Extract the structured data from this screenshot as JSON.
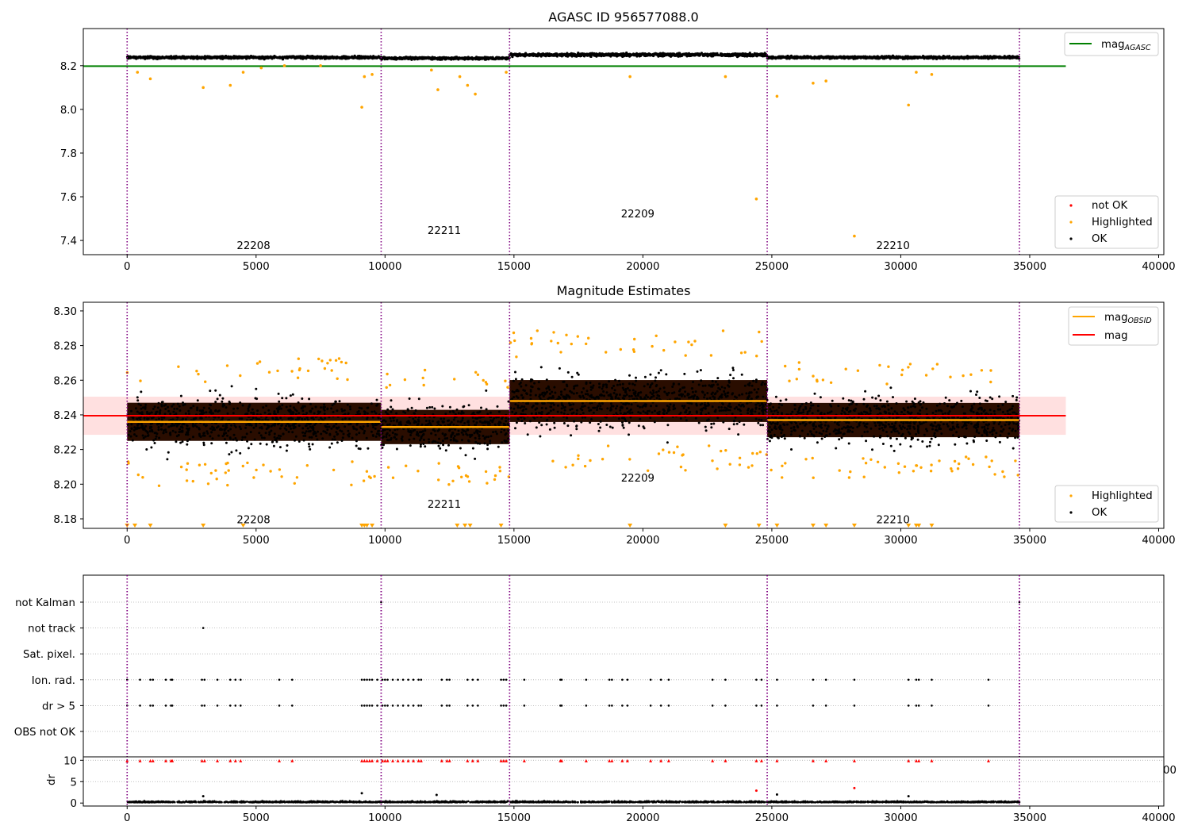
{
  "chart_data": [
    {
      "type": "scatter",
      "title": "AGASC ID 956577088.0",
      "xlim": [
        -1700,
        40200
      ],
      "ylim": [
        7.335,
        8.37
      ],
      "xticks": [
        "0",
        "5000",
        "10000",
        "15000",
        "20000",
        "25000",
        "30000",
        "35000",
        "40000"
      ],
      "yticks": [
        "7.4",
        "7.6",
        "7.8",
        "8.0",
        "8.2"
      ],
      "grid": false,
      "legends": [
        {
          "placement": "top-right",
          "entries": [
            {
              "label": "mag",
              "sub": "AGASC",
              "color": "#008000",
              "kind": "line"
            }
          ]
        },
        {
          "placement": "bottom-right",
          "entries": [
            {
              "label": "not OK",
              "color": "#ff0000",
              "kind": "dot"
            },
            {
              "label": "Highlighted",
              "color": "#ffa500",
              "kind": "dot"
            },
            {
              "label": "OK",
              "color": "#000000",
              "kind": "dot"
            }
          ]
        }
      ],
      "reference_line": {
        "name": "mag_AGASC",
        "y": 8.198,
        "x": [
          -1700,
          36400
        ],
        "color": "#008000"
      },
      "obsid_boundaries": [
        0,
        9850,
        14830,
        24820,
        34600
      ],
      "obsid_labels": [
        {
          "text": "22208",
          "x": 4900,
          "y": 7.36
        },
        {
          "text": "22211",
          "x": 12300,
          "y": 7.43
        },
        {
          "text": "22209",
          "x": 19800,
          "y": 7.505
        },
        {
          "text": "22210",
          "x": 29700,
          "y": 7.36
        }
      ],
      "segments": [
        {
          "x": [
            0,
            9850
          ],
          "center": 8.238,
          "spread": 0.012
        },
        {
          "x": [
            9850,
            14830
          ],
          "center": 8.234,
          "spread": 0.011
        },
        {
          "x": [
            14830,
            24820
          ],
          "center": 8.25,
          "spread": 0.014
        },
        {
          "x": [
            24820,
            34600
          ],
          "center": 8.238,
          "spread": 0.011
        }
      ],
      "highlighted_points": [
        {
          "x": 400,
          "y": 8.17
        },
        {
          "x": 900,
          "y": 8.14
        },
        {
          "x": 2950,
          "y": 8.1
        },
        {
          "x": 4000,
          "y": 8.11
        },
        {
          "x": 4500,
          "y": 8.17
        },
        {
          "x": 5200,
          "y": 8.19
        },
        {
          "x": 6100,
          "y": 8.2
        },
        {
          "x": 7500,
          "y": 8.2
        },
        {
          "x": 9100,
          "y": 8.01
        },
        {
          "x": 9200,
          "y": 8.15
        },
        {
          "x": 9500,
          "y": 8.16
        },
        {
          "x": 11800,
          "y": 8.18
        },
        {
          "x": 12050,
          "y": 8.09
        },
        {
          "x": 12900,
          "y": 8.15
        },
        {
          "x": 13200,
          "y": 8.11
        },
        {
          "x": 13500,
          "y": 8.07
        },
        {
          "x": 14700,
          "y": 8.17
        },
        {
          "x": 19500,
          "y": 8.15
        },
        {
          "x": 23200,
          "y": 8.15
        },
        {
          "x": 24400,
          "y": 7.59
        },
        {
          "x": 25200,
          "y": 8.06
        },
        {
          "x": 26600,
          "y": 8.12
        },
        {
          "x": 27100,
          "y": 8.13
        },
        {
          "x": 28200,
          "y": 7.42
        },
        {
          "x": 30300,
          "y": 8.02
        },
        {
          "x": 30600,
          "y": 8.17
        },
        {
          "x": 31200,
          "y": 8.16
        }
      ]
    },
    {
      "type": "scatter",
      "title": "Magnitude Estimates",
      "xlim": [
        -1700,
        40200
      ],
      "ylim": [
        8.1745,
        8.305
      ],
      "xticks": [
        "0",
        "5000",
        "10000",
        "15000",
        "20000",
        "25000",
        "30000",
        "35000",
        "40000"
      ],
      "yticks": [
        "8.18",
        "8.20",
        "8.22",
        "8.24",
        "8.26",
        "8.28",
        "8.30"
      ],
      "grid": false,
      "legends": [
        {
          "placement": "top-right",
          "entries": [
            {
              "label": "mag",
              "sub": "OBSID",
              "color": "#ffa500",
              "kind": "line"
            },
            {
              "label": "mag",
              "sub": "",
              "color": "#ff0000",
              "kind": "line"
            }
          ]
        },
        {
          "placement": "bottom-right",
          "entries": [
            {
              "label": "Highlighted",
              "color": "#ffa500",
              "kind": "dot"
            },
            {
              "label": "OK",
              "color": "#000000",
              "kind": "dot"
            }
          ]
        }
      ],
      "mag_line": {
        "y": 8.2395,
        "x": [
          -1700,
          36400
        ],
        "band": [
          8.2285,
          8.2505
        ],
        "color": "#ff0000"
      },
      "obsid_boundaries": [
        0,
        9850,
        14830,
        24820,
        34600
      ],
      "obsid_labels": [
        {
          "text": "22208",
          "x": 4900,
          "y": 8.1775
        },
        {
          "text": "22211",
          "x": 12300,
          "y": 8.1865
        },
        {
          "text": "22209",
          "x": 19800,
          "y": 8.2015
        },
        {
          "text": "22210",
          "x": 29700,
          "y": 8.1775
        }
      ],
      "segments": [
        {
          "x": [
            0,
            9850
          ],
          "mag_obsid": 8.236,
          "center": 8.236,
          "spread": 0.01
        },
        {
          "x": [
            9850,
            14830
          ],
          "mag_obsid": 8.233,
          "center": 8.233,
          "spread": 0.009
        },
        {
          "x": [
            14830,
            24820
          ],
          "mag_obsid": 8.248,
          "center": 8.248,
          "spread": 0.011
        },
        {
          "x": [
            24820,
            34600
          ],
          "mag_obsid": 8.237,
          "center": 8.237,
          "spread": 0.009
        }
      ],
      "lower_limit_markers_x": [
        0,
        300,
        900,
        2950,
        4500,
        9100,
        9200,
        9300,
        9500,
        12800,
        13100,
        13300,
        14500,
        19500,
        23200,
        24500,
        25200,
        26600,
        27100,
        28200,
        30300,
        30600,
        30700,
        31200
      ]
    },
    {
      "type": "scatter",
      "title": "",
      "xlim": [
        -1700,
        40200
      ],
      "categories": [
        "not Kalman",
        "not track",
        "Sat. pixel.",
        "Ion. rad.",
        "dr > 5",
        "OBS not OK"
      ],
      "grid": "horizontal dotted",
      "obsid_boundaries": [
        0,
        9850,
        14830,
        24820,
        34600
      ],
      "flags": {
        "not Kalman": [
          9850,
          34600
        ],
        "not track": [
          2950
        ],
        "Sat. pixel.": [],
        "Ion. rad.": [
          0,
          500,
          900,
          1000,
          1500,
          1700,
          1750,
          2900,
          3000,
          3500,
          4000,
          4200,
          4400,
          5900,
          6400,
          9100,
          9200,
          9300,
          9400,
          9500,
          9700,
          9900,
          10000,
          10100,
          10300,
          10500,
          10700,
          10900,
          11100,
          11300,
          11400,
          12200,
          12400,
          12500,
          13200,
          13400,
          13600,
          14500,
          14600,
          14700,
          15400,
          16800,
          16850,
          17800,
          18700,
          18800,
          19200,
          19400,
          20300,
          20700,
          21000,
          22700,
          23200,
          24400,
          24600,
          25200,
          26600,
          27100,
          28200,
          30300,
          30600,
          30700,
          31200,
          33400
        ],
        "dr > 5": [
          0,
          500,
          900,
          1000,
          1500,
          1700,
          1750,
          2900,
          3000,
          3500,
          4000,
          4200,
          4400,
          5900,
          6400,
          9100,
          9200,
          9300,
          9400,
          9500,
          9700,
          9900,
          10000,
          10100,
          10300,
          10500,
          10700,
          10900,
          11100,
          11300,
          11400,
          12200,
          12400,
          12500,
          13200,
          13400,
          13600,
          14500,
          14600,
          14700,
          15400,
          16800,
          16850,
          17800,
          18700,
          18800,
          19200,
          19400,
          20300,
          20700,
          21000,
          22700,
          23200,
          24400,
          24600,
          25200,
          26600,
          27100,
          28200,
          30300,
          30600,
          30700,
          31200,
          33400
        ],
        "OBS not OK": []
      }
    },
    {
      "type": "scatter",
      "title": "",
      "ylabel": "dr",
      "xlim": [
        -1700,
        40200
      ],
      "ylim": [
        -0.7,
        10.8
      ],
      "xticks": [
        "0",
        "5000",
        "10000",
        "15000",
        "20000",
        "25000",
        "30000",
        "35000",
        "40000"
      ],
      "yticks": [
        "0",
        "5",
        "10"
      ],
      "stray_tick_label": "00",
      "obsid_boundaries": [
        0,
        9850,
        14830,
        24820,
        34600
      ],
      "clipped_markers_x": [
        0,
        500,
        900,
        1000,
        1500,
        1700,
        1750,
        2900,
        3000,
        3500,
        4000,
        4200,
        4400,
        5900,
        6400,
        9100,
        9200,
        9300,
        9400,
        9500,
        9700,
        9900,
        10000,
        10100,
        10300,
        10500,
        10700,
        10900,
        11100,
        11300,
        11400,
        12200,
        12400,
        12500,
        13200,
        13400,
        13600,
        14500,
        14600,
        14700,
        15400,
        16800,
        16850,
        17800,
        18700,
        18800,
        19200,
        19400,
        20300,
        20700,
        21000,
        22700,
        23200,
        24400,
        24600,
        25200,
        26600,
        27100,
        28200,
        30300,
        30600,
        30700,
        31200,
        33400
      ],
      "outliers": [
        {
          "x": 2950,
          "y": 1.6,
          "color": "#000000"
        },
        {
          "x": 9100,
          "y": 2.3,
          "color": "#000000"
        },
        {
          "x": 12000,
          "y": 1.9,
          "color": "#000000"
        },
        {
          "x": 24400,
          "y": 2.9,
          "color": "#ff0000"
        },
        {
          "x": 25200,
          "y": 2.0,
          "color": "#000000"
        },
        {
          "x": 28200,
          "y": 3.5,
          "color": "#ff0000"
        },
        {
          "x": 30300,
          "y": 1.6,
          "color": "#000000"
        }
      ]
    }
  ]
}
